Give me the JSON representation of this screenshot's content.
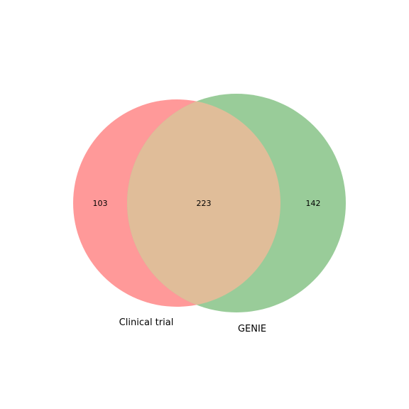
{
  "venn": {
    "sets": [
      {
        "name": "Clinical trial",
        "only_count": "103",
        "color": "#ff9999"
      },
      {
        "name": "GENIE",
        "only_count": "142",
        "color": "#99cc99"
      }
    ],
    "intersection": {
      "count": "223",
      "color": "#e0bd99"
    }
  }
}
